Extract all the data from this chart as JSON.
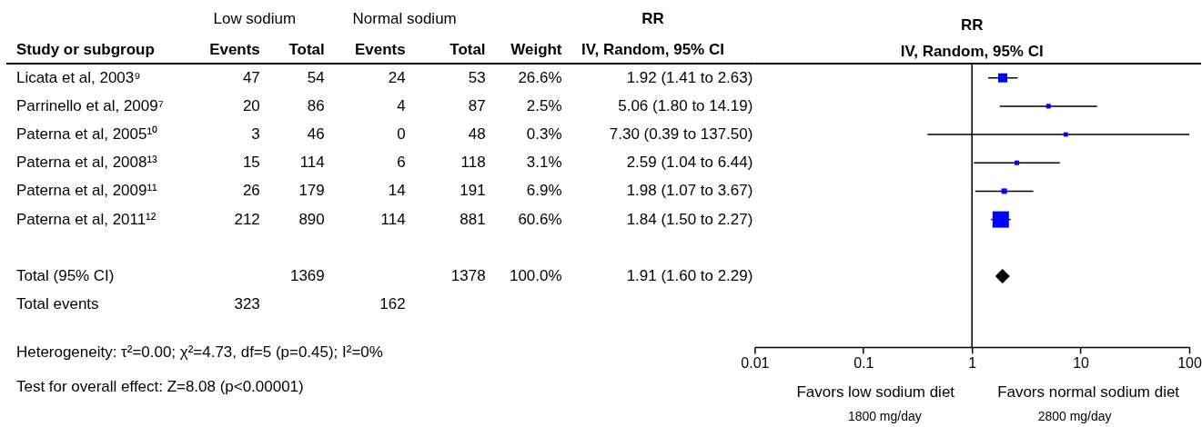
{
  "chart_data": [
    {
      "type": "other",
      "ylabel": "Study or subgroup",
      "categories": [
        "Events",
        "Total",
        "Events",
        "Total",
        "Weight",
        "IV, Random, 95% CI"
      ],
      "y_categories": [
        "Licata et al, 2003⁹",
        "Parrinello et al, 2009⁷",
        "Paterna et al, 2005¹⁰",
        "Paterna et al, 2008¹³",
        "Paterna et al, 2009¹¹",
        "Paterna et al, 2011¹²",
        null,
        "Total (95% CI)",
        "Total events"
      ],
      "cell_labels": [
        [
          "47",
          "54",
          "24",
          "53",
          "26.6%",
          "1.92 (1.41 to 2.63)"
        ],
        [
          "20",
          "86",
          "4",
          "87",
          "2.5%",
          "5.06 (1.80 to 14.19)"
        ],
        [
          "3",
          "46",
          "0",
          "48",
          "0.3%",
          "7.30 (0.39 to 137.50)"
        ],
        [
          "15",
          "114",
          "6",
          "118",
          "3.1%",
          "2.59 (1.04 to 6.44)"
        ],
        [
          "26",
          "179",
          "14",
          "191",
          "6.9%",
          "1.98 (1.07 to 3.67)"
        ],
        [
          "212",
          "890",
          "114",
          "881",
          "60.6%",
          "1.84 (1.50 to 2.27)"
        ],
        [
          null,
          null,
          null,
          null,
          null,
          null
        ],
        [
          null,
          "1369",
          null,
          "1378",
          "100.0%",
          "1.91 (1.60 to 2.29)"
        ],
        [
          "323",
          null,
          "162",
          null,
          null,
          null
        ]
      ],
      "annotations": [
        "Low sodium",
        "Normal sodium",
        "RR",
        "Heterogeneity: τ²=0.00; χ²=4.73, df=5 (p=0.45); I²=0%",
        "Test for overall effect: Z=8.08 (p<0.00001)"
      ]
    },
    {
      "type": "scatter",
      "title": "RR",
      "subtitle": "IV, Random, 95% CI",
      "orientation": "horizontal",
      "categories": [
        null,
        null,
        null,
        null,
        null,
        null,
        null,
        null,
        null,
        null
      ],
      "log": "x",
      "xlim": [
        0.01,
        100
      ],
      "xticks": [
        0.01,
        0.1,
        1,
        10,
        100
      ],
      "series": [
        {
          "type": "bubble",
          "marker": "square",
          "color": "#0000ff",
          "values": [
            1.92,
            5.06,
            7.3,
            2.59,
            1.98,
            1.84,
            null,
            null,
            null,
            null
          ],
          "sizes": [
            0.31,
            0.08,
            0.07,
            0.08,
            0.11,
            1,
            null,
            null,
            null,
            null
          ],
          "errors": [
            [
              1.41,
              2.63
            ],
            [
              1.8,
              14.19
            ],
            [
              0.39,
              100
            ],
            [
              1.04,
              6.44
            ],
            [
              1.07,
              3.67
            ],
            [
              1.5,
              2.27
            ],
            null,
            null,
            null,
            null
          ]
        },
        {
          "type": "scatter",
          "marker": "diamond",
          "color": "#000000",
          "values": [
            null,
            null,
            null,
            null,
            null,
            null,
            null,
            1.91,
            null,
            null
          ]
        }
      ],
      "ref_lines": [
        {
          "axis": "x",
          "value": 1,
          "color": "#000000"
        }
      ],
      "annotations": [
        "Favors low sodium diet",
        "Favors normal sodium diet",
        "1800 mg/day",
        "2800 mg/day"
      ]
    }
  ]
}
